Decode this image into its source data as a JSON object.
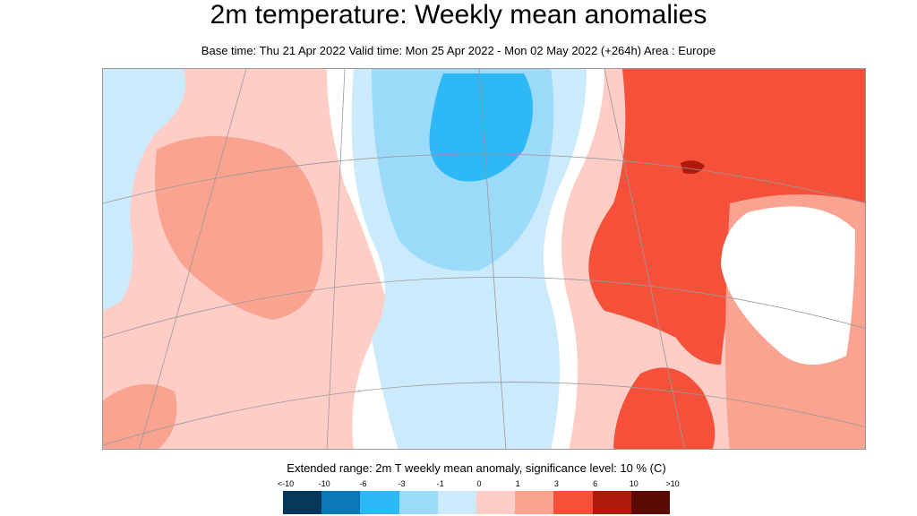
{
  "title": "2m temperature: Weekly mean anomalies",
  "subtitle": "Base time: Thu 21 Apr 2022 Valid time: Mon 25 Apr 2022 - Mon 02 May 2022 (+264h) Area : Europe",
  "legend": {
    "title": "Extended range: 2m T weekly mean anomaly, significance level: 10 % (C)",
    "labels": [
      "<-10",
      "-10",
      "-6",
      "-3",
      "-1",
      "0",
      "1",
      "3",
      "6",
      "10",
      ">10"
    ],
    "colors": [
      "#04375a",
      "#0b77b6",
      "#2eb8f5",
      "#9bdaf9",
      "#cbeafb",
      "#fdcdc6",
      "#f9a390",
      "#f4503a",
      "#b01a0a",
      "#5c0a04"
    ]
  },
  "map": {
    "area": "Europe",
    "colors": {
      "light_pink": "#fdcdc6",
      "salmon": "#f9a390",
      "red": "#f4503a",
      "light_blue": "#cbeafb",
      "mid_blue": "#9bdaf9",
      "blue": "#2eb8f5",
      "white": "#ffffff"
    }
  }
}
